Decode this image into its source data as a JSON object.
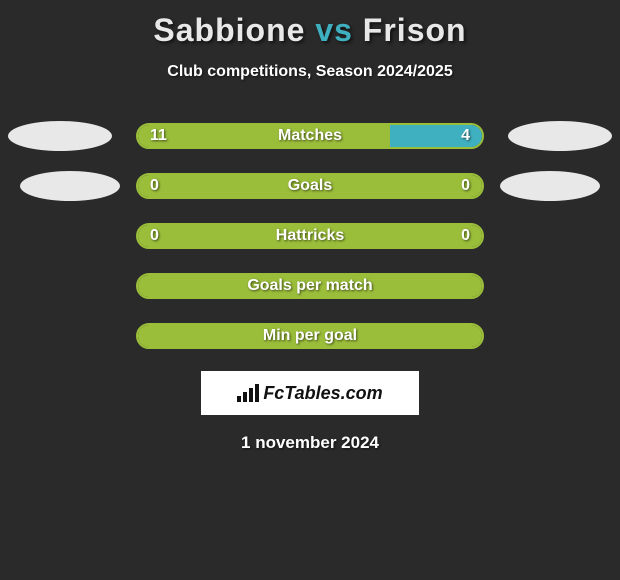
{
  "title": {
    "player1": "Sabbione",
    "vs": "vs",
    "player2": "Frison",
    "player1_color": "#e8e8e8",
    "vs_color": "#3fb0c0",
    "player2_color": "#e8e8e8"
  },
  "subtitle": "Club competitions, Season 2024/2025",
  "colors": {
    "green": "#9abd3a",
    "teal": "#3fb0c0",
    "background": "#2a2a2a",
    "ellipse_left_1": "#e8e8e8",
    "ellipse_right_1": "#e8e8e8",
    "ellipse_left_2": "#e8e8e8",
    "ellipse_right_2": "#e8e8e8"
  },
  "stats": [
    {
      "label": "Matches",
      "left_value": "11",
      "right_value": "4",
      "left_num": 11,
      "right_num": 4,
      "left_color": "#9abd3a",
      "right_color": "#3fb0c0",
      "border_color": "#9abd3a",
      "show_values": true,
      "has_ellipses": true
    },
    {
      "label": "Goals",
      "left_value": "0",
      "right_value": "0",
      "left_num": 0,
      "right_num": 0,
      "left_color": "#9abd3a",
      "right_color": "#3fb0c0",
      "border_color": "#9abd3a",
      "show_values": true,
      "has_ellipses": true
    },
    {
      "label": "Hattricks",
      "left_value": "0",
      "right_value": "0",
      "left_num": 0,
      "right_num": 0,
      "left_color": "#9abd3a",
      "right_color": "#3fb0c0",
      "border_color": "#9abd3a",
      "show_values": true,
      "has_ellipses": false
    },
    {
      "label": "Goals per match",
      "left_value": "",
      "right_value": "",
      "left_num": 0,
      "right_num": 0,
      "left_color": "#9abd3a",
      "right_color": "#3fb0c0",
      "border_color": "#9abd3a",
      "show_values": false,
      "has_ellipses": false
    },
    {
      "label": "Min per goal",
      "left_value": "",
      "right_value": "",
      "left_num": 0,
      "right_num": 0,
      "left_color": "#9abd3a",
      "right_color": "#3fb0c0",
      "border_color": "#9abd3a",
      "show_values": false,
      "has_ellipses": false
    }
  ],
  "logo": {
    "text": "FcTables.com"
  },
  "date": "1 november 2024"
}
